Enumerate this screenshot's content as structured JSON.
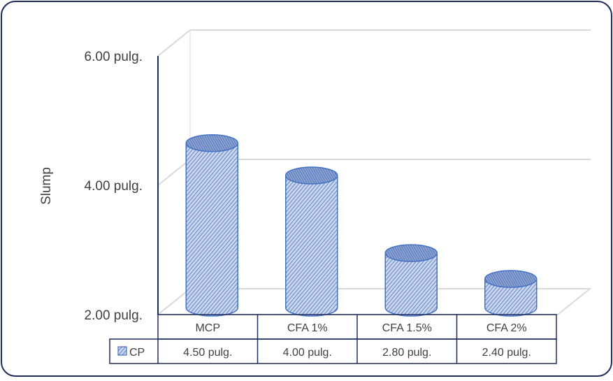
{
  "chart_data": {
    "type": "bar",
    "style": "3d-cylinder",
    "title": "",
    "xlabel": "",
    "ylabel": "Slump",
    "ylim": [
      2,
      6
    ],
    "y_ticks": [
      {
        "value": 2,
        "label": "2.00 pulg."
      },
      {
        "value": 4,
        "label": "4.00 pulg."
      },
      {
        "value": 6,
        "label": "6.00 pulg."
      }
    ],
    "categories": [
      "MCP",
      "CFA 1%",
      "CFA 1.5%",
      "CFA 2%"
    ],
    "series": [
      {
        "name": "CP",
        "values": [
          4.5,
          4.0,
          2.8,
          2.4
        ],
        "value_labels": [
          "4.50 pulg.",
          "4.00 pulg.",
          "2.80 pulg.",
          "2.40 pulg."
        ]
      }
    ],
    "grid": true,
    "legend": "data-table-left",
    "colors": {
      "bar_fill": "#c5d3ec",
      "bar_hatch": "#4a6fb3",
      "bar_stroke": "#4472c4",
      "grid": "#d9d9d9",
      "axis": "#1f2d5c",
      "table_border": "#1f2d5c",
      "frame_border": "#1f2d5c"
    }
  }
}
